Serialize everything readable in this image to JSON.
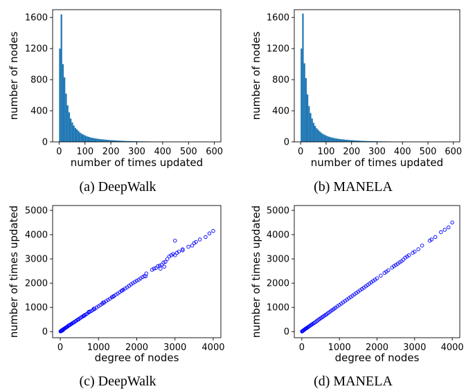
{
  "chart_data": [
    {
      "type": "bar",
      "caption": "(a)  DeepWalk",
      "xlabel": "number of times updated",
      "ylabel": "number of nodes",
      "xlim": [
        -25,
        625
      ],
      "ylim": [
        0,
        1700
      ],
      "xticks": [
        0,
        100,
        200,
        300,
        400,
        500,
        600
      ],
      "yticks": [
        0,
        400,
        800,
        1200,
        1600
      ],
      "bin_width": 6,
      "bin_start": 3,
      "color": "#1f77b4",
      "values": [
        1200,
        1640,
        1000,
        830,
        620,
        470,
        380,
        300,
        250,
        210,
        180,
        160,
        140,
        120,
        105,
        95,
        85,
        75,
        68,
        62,
        56,
        52,
        48,
        44,
        41,
        38,
        35,
        33,
        31,
        29,
        27,
        25,
        23,
        22,
        21,
        20,
        18,
        17,
        16,
        15,
        14,
        13,
        12,
        11,
        11,
        10,
        10,
        9,
        9,
        8,
        8,
        7,
        7,
        7,
        6,
        6,
        6,
        5,
        5,
        5,
        5,
        4,
        4,
        4,
        4,
        3,
        3,
        3,
        3,
        3,
        3,
        2,
        2,
        2,
        2,
        2,
        2,
        2,
        2,
        1,
        1,
        1,
        1,
        1,
        1,
        1,
        1,
        1,
        1,
        1,
        1,
        1,
        1,
        1,
        1,
        1,
        1
      ]
    },
    {
      "type": "bar",
      "caption": "(b)  MANELA",
      "xlabel": "number of times updated",
      "ylabel": "number of nodes",
      "xlim": [
        -25,
        625
      ],
      "ylim": [
        0,
        1700
      ],
      "xticks": [
        0,
        100,
        200,
        300,
        400,
        500,
        600
      ],
      "yticks": [
        0,
        400,
        800,
        1200,
        1600
      ],
      "bin_width": 6,
      "bin_start": 3,
      "color": "#1f77b4",
      "values": [
        1200,
        1650,
        1010,
        820,
        610,
        460,
        370,
        300,
        245,
        205,
        175,
        155,
        135,
        118,
        103,
        93,
        83,
        74,
        67,
        61,
        55,
        51,
        47,
        43,
        40,
        37,
        34,
        32,
        30,
        28,
        26,
        24,
        22,
        21,
        20,
        19,
        17,
        16,
        15,
        14,
        13,
        12,
        11,
        11,
        10,
        10,
        9,
        9,
        8,
        8,
        7,
        7,
        7,
        6,
        6,
        6,
        5,
        5,
        5,
        5,
        4,
        4,
        4,
        4,
        3,
        3,
        3,
        3,
        3,
        3,
        2,
        2,
        2,
        2,
        2,
        2,
        2,
        2,
        1,
        1,
        1,
        1,
        1,
        1,
        1,
        1,
        1,
        1,
        1,
        1,
        1,
        1,
        1,
        1,
        1,
        1,
        1
      ]
    },
    {
      "type": "scatter",
      "caption": "(c)  DeepWalk",
      "xlabel": "degree of nodes",
      "ylabel": "number of times updated",
      "xlim": [
        -200,
        4200
      ],
      "ylim": [
        -250,
        5200
      ],
      "xticks": [
        0,
        1000,
        2000,
        3000,
        4000
      ],
      "yticks": [
        0,
        1000,
        2000,
        3000,
        4000,
        5000
      ],
      "color": "#0000ff",
      "points": [
        [
          5,
          10
        ],
        [
          12,
          20
        ],
        [
          20,
          30
        ],
        [
          30,
          40
        ],
        [
          40,
          55
        ],
        [
          55,
          70
        ],
        [
          70,
          90
        ],
        [
          85,
          100
        ],
        [
          100,
          120
        ],
        [
          120,
          140
        ],
        [
          140,
          160
        ],
        [
          160,
          180
        ],
        [
          180,
          200
        ],
        [
          200,
          230
        ],
        [
          225,
          250
        ],
        [
          250,
          280
        ],
        [
          275,
          300
        ],
        [
          300,
          330
        ],
        [
          330,
          360
        ],
        [
          360,
          390
        ],
        [
          390,
          420
        ],
        [
          420,
          450
        ],
        [
          450,
          490
        ],
        [
          480,
          510
        ],
        [
          510,
          550
        ],
        [
          540,
          580
        ],
        [
          570,
          610
        ],
        [
          600,
          640
        ],
        [
          630,
          680
        ],
        [
          660,
          700
        ],
        [
          700,
          740
        ],
        [
          740,
          790
        ],
        [
          780,
          830
        ],
        [
          820,
          860
        ],
        [
          860,
          900
        ],
        [
          900,
          940
        ],
        [
          950,
          1000
        ],
        [
          1000,
          1050
        ],
        [
          1050,
          1100
        ],
        [
          1100,
          1150
        ],
        [
          1150,
          1200
        ],
        [
          1200,
          1260
        ],
        [
          1250,
          1310
        ],
        [
          1300,
          1360
        ],
        [
          1350,
          1420
        ],
        [
          1400,
          1470
        ],
        [
          1450,
          1520
        ],
        [
          1500,
          1570
        ],
        [
          1550,
          1620
        ],
        [
          1600,
          1680
        ],
        [
          1650,
          1730
        ],
        [
          1700,
          1780
        ],
        [
          1750,
          1830
        ],
        [
          1800,
          1890
        ],
        [
          1850,
          1950
        ],
        [
          1900,
          2000
        ],
        [
          1950,
          2050
        ],
        [
          2000,
          2100
        ],
        [
          2050,
          2140
        ],
        [
          2100,
          2200
        ],
        [
          2150,
          2250
        ],
        [
          2200,
          2300
        ],
        [
          2250,
          2400
        ],
        [
          2400,
          2550
        ],
        [
          2450,
          2600
        ],
        [
          2500,
          2620
        ],
        [
          2550,
          2700
        ],
        [
          2600,
          2720
        ],
        [
          2650,
          2760
        ],
        [
          2700,
          2850
        ],
        [
          2750,
          2880
        ],
        [
          2800,
          3000
        ],
        [
          2850,
          3100
        ],
        [
          2900,
          3150
        ],
        [
          2950,
          3200
        ],
        [
          3000,
          3150
        ],
        [
          3050,
          3250
        ],
        [
          3100,
          3300
        ],
        [
          3200,
          3350
        ],
        [
          3350,
          3500
        ],
        [
          3450,
          3550
        ],
        [
          3500,
          3650
        ],
        [
          3550,
          3700
        ],
        [
          3650,
          3800
        ],
        [
          3800,
          3900
        ],
        [
          3900,
          4050
        ],
        [
          4000,
          4150
        ],
        [
          50,
          40
        ],
        [
          80,
          75
        ],
        [
          150,
          170
        ],
        [
          240,
          270
        ],
        [
          350,
          380
        ],
        [
          470,
          500
        ],
        [
          620,
          650
        ],
        [
          750,
          820
        ],
        [
          880,
          950
        ],
        [
          1120,
          1200
        ],
        [
          1380,
          1440
        ],
        [
          1620,
          1700
        ],
        [
          2230,
          2280
        ],
        [
          2620,
          2600
        ],
        [
          2720,
          2680
        ],
        [
          3200,
          3400
        ],
        [
          3000,
          3750
        ]
      ]
    },
    {
      "type": "scatter",
      "caption": "(d)  MANELA",
      "xlabel": "degree of nodes",
      "ylabel": "number of times updated",
      "xlim": [
        -200,
        4200
      ],
      "ylim": [
        -250,
        5200
      ],
      "xticks": [
        0,
        1000,
        2000,
        3000,
        4000
      ],
      "yticks": [
        0,
        1000,
        2000,
        3000,
        4000,
        5000
      ],
      "color": "#0000ff",
      "points": [
        [
          5,
          8
        ],
        [
          12,
          15
        ],
        [
          20,
          25
        ],
        [
          30,
          36
        ],
        [
          40,
          50
        ],
        [
          55,
          65
        ],
        [
          70,
          85
        ],
        [
          85,
          100
        ],
        [
          100,
          120
        ],
        [
          120,
          140
        ],
        [
          140,
          160
        ],
        [
          160,
          180
        ],
        [
          180,
          200
        ],
        [
          200,
          225
        ],
        [
          225,
          250
        ],
        [
          250,
          280
        ],
        [
          275,
          305
        ],
        [
          300,
          330
        ],
        [
          330,
          360
        ],
        [
          360,
          395
        ],
        [
          390,
          430
        ],
        [
          420,
          460
        ],
        [
          450,
          500
        ],
        [
          480,
          530
        ],
        [
          510,
          560
        ],
        [
          540,
          595
        ],
        [
          570,
          625
        ],
        [
          600,
          660
        ],
        [
          630,
          690
        ],
        [
          660,
          720
        ],
        [
          700,
          770
        ],
        [
          740,
          810
        ],
        [
          780,
          860
        ],
        [
          820,
          900
        ],
        [
          860,
          945
        ],
        [
          900,
          990
        ],
        [
          950,
          1045
        ],
        [
          1000,
          1100
        ],
        [
          1050,
          1155
        ],
        [
          1100,
          1210
        ],
        [
          1150,
          1265
        ],
        [
          1200,
          1320
        ],
        [
          1250,
          1375
        ],
        [
          1300,
          1430
        ],
        [
          1350,
          1485
        ],
        [
          1400,
          1540
        ],
        [
          1450,
          1595
        ],
        [
          1500,
          1650
        ],
        [
          1550,
          1705
        ],
        [
          1600,
          1760
        ],
        [
          1650,
          1815
        ],
        [
          1700,
          1870
        ],
        [
          1750,
          1925
        ],
        [
          1800,
          1980
        ],
        [
          1850,
          2035
        ],
        [
          1900,
          2090
        ],
        [
          1950,
          2145
        ],
        [
          2000,
          2200
        ],
        [
          2100,
          2310
        ],
        [
          2200,
          2420
        ],
        [
          2250,
          2475
        ],
        [
          2300,
          2530
        ],
        [
          2400,
          2640
        ],
        [
          2450,
          2700
        ],
        [
          2500,
          2750
        ],
        [
          2550,
          2800
        ],
        [
          2600,
          2860
        ],
        [
          2650,
          2900
        ],
        [
          2700,
          2970
        ],
        [
          2750,
          3050
        ],
        [
          2800,
          3100
        ],
        [
          2850,
          3150
        ],
        [
          2950,
          3250
        ],
        [
          3000,
          3300
        ],
        [
          3100,
          3400
        ],
        [
          3200,
          3550
        ],
        [
          3400,
          3750
        ],
        [
          3450,
          3800
        ],
        [
          3550,
          3900
        ],
        [
          3700,
          4100
        ],
        [
          3800,
          4200
        ],
        [
          3900,
          4300
        ],
        [
          4000,
          4500
        ]
      ]
    }
  ]
}
